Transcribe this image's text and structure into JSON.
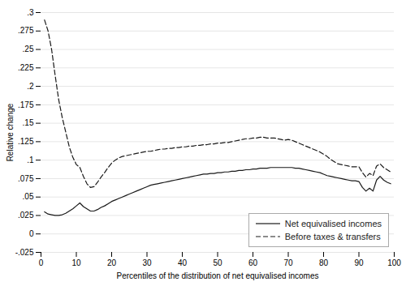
{
  "chart_data": {
    "type": "line",
    "xlabel": "Percentiles of the distribution of net equivalised incomes",
    "ylabel": "Relative change",
    "xlim": [
      0,
      100
    ],
    "ylim": [
      -0.025,
      0.3
    ],
    "xticks": [
      0,
      10,
      20,
      30,
      40,
      50,
      60,
      70,
      80,
      90,
      100
    ],
    "yticks": [
      {
        "value": -0.025,
        "label": "-.025"
      },
      0,
      {
        "value": 0.025,
        "label": ".025"
      },
      {
        "value": 0.05,
        "label": ".05"
      },
      {
        "value": 0.075,
        "label": ".075"
      },
      {
        "value": 0.1,
        "label": ".1"
      },
      {
        "value": 0.125,
        "label": ".125"
      },
      {
        "value": 0.15,
        "label": ".15"
      },
      {
        "value": 0.175,
        "label": ".175"
      },
      {
        "value": 0.2,
        "label": ".2"
      },
      {
        "value": 0.225,
        "label": ".225"
      },
      {
        "value": 0.25,
        "label": ".25"
      },
      {
        "value": 0.275,
        "label": ".275"
      },
      {
        "value": 0.3,
        "label": ".3"
      }
    ],
    "grid": "y",
    "legend": "lower right",
    "x": [
      1,
      2,
      3,
      4,
      5,
      6,
      7,
      8,
      9,
      10,
      11,
      12,
      13,
      14,
      15,
      16,
      17,
      18,
      19,
      20,
      21,
      22,
      23,
      24,
      25,
      26,
      27,
      28,
      29,
      30,
      31,
      32,
      33,
      34,
      35,
      36,
      37,
      38,
      39,
      40,
      41,
      42,
      43,
      44,
      45,
      46,
      47,
      48,
      49,
      50,
      51,
      52,
      53,
      54,
      55,
      56,
      57,
      58,
      59,
      60,
      61,
      62,
      63,
      64,
      65,
      66,
      67,
      68,
      69,
      70,
      71,
      72,
      73,
      74,
      75,
      76,
      77,
      78,
      79,
      80,
      81,
      82,
      83,
      84,
      85,
      86,
      87,
      88,
      89,
      90,
      91,
      92,
      93,
      94,
      95,
      96,
      97,
      98,
      99
    ],
    "series": [
      {
        "name": "Net equivalised incomes",
        "color": "#1a1a1a",
        "line_style": "solid",
        "values": [
          0.03,
          0.027,
          0.026,
          0.025,
          0.025,
          0.026,
          0.028,
          0.031,
          0.034,
          0.038,
          0.042,
          0.037,
          0.034,
          0.031,
          0.031,
          0.033,
          0.036,
          0.038,
          0.041,
          0.044,
          0.046,
          0.048,
          0.05,
          0.052,
          0.054,
          0.056,
          0.058,
          0.06,
          0.062,
          0.064,
          0.066,
          0.067,
          0.068,
          0.069,
          0.07,
          0.071,
          0.072,
          0.073,
          0.074,
          0.075,
          0.076,
          0.077,
          0.078,
          0.079,
          0.08,
          0.081,
          0.081,
          0.082,
          0.082,
          0.083,
          0.083,
          0.084,
          0.084,
          0.085,
          0.085,
          0.086,
          0.086,
          0.087,
          0.087,
          0.088,
          0.088,
          0.089,
          0.089,
          0.089,
          0.09,
          0.09,
          0.09,
          0.09,
          0.09,
          0.09,
          0.09,
          0.089,
          0.089,
          0.088,
          0.087,
          0.086,
          0.085,
          0.084,
          0.083,
          0.081,
          0.079,
          0.078,
          0.077,
          0.076,
          0.075,
          0.074,
          0.073,
          0.072,
          0.072,
          0.071,
          0.063,
          0.058,
          0.062,
          0.058,
          0.073,
          0.078,
          0.073,
          0.07,
          0.068
        ]
      },
      {
        "name": "Before taxes & transfers",
        "color": "#1a1a1a",
        "line_style": "dashed",
        "values": [
          0.29,
          0.275,
          0.25,
          0.215,
          0.182,
          0.158,
          0.138,
          0.118,
          0.104,
          0.094,
          0.09,
          0.078,
          0.068,
          0.063,
          0.064,
          0.07,
          0.077,
          0.083,
          0.09,
          0.096,
          0.1,
          0.103,
          0.105,
          0.106,
          0.107,
          0.108,
          0.109,
          0.11,
          0.111,
          0.112,
          0.112,
          0.113,
          0.114,
          0.115,
          0.115,
          0.116,
          0.116,
          0.117,
          0.117,
          0.118,
          0.118,
          0.119,
          0.119,
          0.12,
          0.12,
          0.121,
          0.121,
          0.122,
          0.122,
          0.123,
          0.123,
          0.124,
          0.124,
          0.125,
          0.126,
          0.127,
          0.128,
          0.129,
          0.129,
          0.13,
          0.13,
          0.131,
          0.131,
          0.13,
          0.13,
          0.13,
          0.129,
          0.128,
          0.127,
          0.128,
          0.127,
          0.125,
          0.123,
          0.121,
          0.119,
          0.117,
          0.115,
          0.113,
          0.111,
          0.108,
          0.105,
          0.101,
          0.098,
          0.095,
          0.094,
          0.093,
          0.092,
          0.091,
          0.091,
          0.091,
          0.083,
          0.077,
          0.082,
          0.079,
          0.092,
          0.095,
          0.09,
          0.087,
          0.084
        ]
      }
    ]
  }
}
